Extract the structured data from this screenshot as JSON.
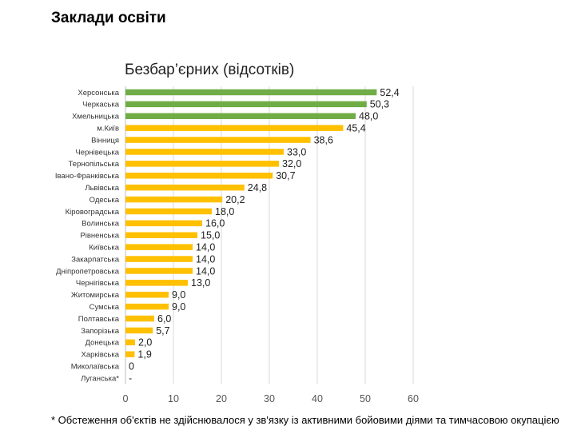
{
  "page": {
    "title": "Заклади освіти",
    "footnote": "* Обстеження об'єктів не здійснювалося у зв'язку із активними бойовими діями та тимчасовою окупацією"
  },
  "colors": {
    "green": "#70AD47",
    "yellow": "#FFC000",
    "grid": "#D9D9D9",
    "axis": "#BFBFBF"
  },
  "chart_data": {
    "type": "bar",
    "orientation": "horizontal",
    "title": "Безбар’єрних (відсотків)",
    "xlabel": "",
    "ylabel": "",
    "xlim": [
      0,
      60
    ],
    "xticks": [
      0,
      10,
      20,
      30,
      40,
      50,
      60
    ],
    "grid": true,
    "categories": [
      "Херсонська",
      "Черкаська",
      "Хмельницька",
      "м.Київ",
      "Вінниця",
      "Чернівецька",
      "Тернопільська",
      "Івано-Франківська",
      "Львівська",
      "Одеська",
      "Кіровоградська",
      "Волинська",
      "Рівненська",
      "Київська",
      "Закарпатська",
      "Дніпропетровська",
      "Чернігівська",
      "Житомирська",
      "Сумська",
      "Полтавська",
      "Запорізька",
      "Донецька",
      "Харківська",
      "Миколаївська",
      "Луганська*"
    ],
    "values": [
      52.4,
      50.3,
      48.0,
      45.4,
      38.6,
      33.0,
      32.0,
      30.7,
      24.8,
      20.2,
      18.0,
      16.0,
      15.0,
      14.0,
      14.0,
      14.0,
      13.0,
      9.0,
      9.0,
      6.0,
      5.7,
      2.0,
      1.9,
      0,
      null
    ],
    "value_labels": [
      "52,4",
      "50,3",
      "48,0",
      "45,4",
      "38,6",
      "33,0",
      "32,0",
      "30,7",
      "24,8",
      "20,2",
      "18,0",
      "16,0",
      "15,0",
      "14,0",
      "14,0",
      "14,0",
      "13,0",
      "9,0",
      "9,0",
      "6,0",
      "5,7",
      "2,0",
      "1,9",
      "0",
      "-"
    ],
    "bar_colors": [
      "green",
      "green",
      "green",
      "yellow",
      "yellow",
      "yellow",
      "yellow",
      "yellow",
      "yellow",
      "yellow",
      "yellow",
      "yellow",
      "yellow",
      "yellow",
      "yellow",
      "yellow",
      "yellow",
      "yellow",
      "yellow",
      "yellow",
      "yellow",
      "yellow",
      "yellow",
      "yellow",
      "yellow"
    ]
  }
}
